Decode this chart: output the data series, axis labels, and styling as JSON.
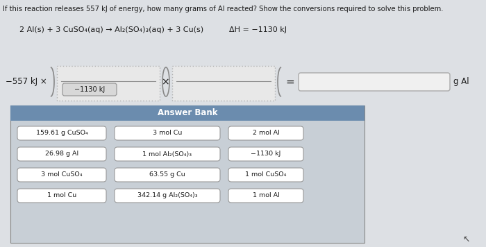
{
  "title_text": "If this reaction releases 557 kJ of energy, how many grams of Al reacted? Show the conversions required to solve this problem.",
  "equation": "2 Al(s) + 3 CuSO₄(aq) → Al₂(SO₄)₃(aq) + 3 Cu(s)",
  "delta_h": "ΔH = −1130 kJ",
  "prefix_text": "−557 kJ ×",
  "box1_bottom_label": "−1130 kJ",
  "multiply_sign": "×",
  "equals_sign": "=",
  "suffix_text": "g Al",
  "answer_bank_header": "Answer Bank",
  "answer_bank_header_color": "#6b8cae",
  "answer_bank_bg": "#c8cfd6",
  "answer_bank_items": [
    [
      "159.61 g CuSO₄",
      "3 mol Cu",
      "2 mol Al"
    ],
    [
      "26.98 g Al",
      "1 mol Al₂(SO₄)₃",
      "−1130 kJ"
    ],
    [
      "3 mol CuSO₄",
      "63.55 g Cu",
      "1 mol CuSO₄"
    ],
    [
      "1 mol Cu",
      "342.14 g Al₂(SO₄)₃",
      "1 mol Al"
    ]
  ],
  "bg_color": "#dde0e4",
  "white": "#ffffff",
  "text_color": "#1a1a1a",
  "item_box_bg": "#f0f0f0",
  "item_box_border": "#999999",
  "dashed_box_bg": "#e8e8e8",
  "dashed_box_border": "#b0b0b0",
  "sub_box_bg": "#d8d8d8",
  "sub_box_border": "#999999",
  "result_box_bg": "#f0f0f0",
  "result_box_border": "#aaaaaa"
}
